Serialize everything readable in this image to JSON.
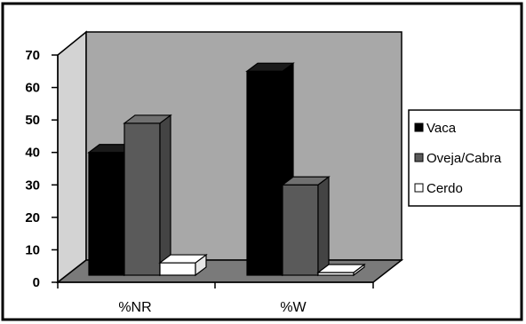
{
  "chart_data": {
    "type": "bar",
    "style": "3d-clustered-column",
    "title": "",
    "xlabel": "",
    "ylabel": "",
    "categories": [
      "%NR",
      "%W"
    ],
    "series": [
      {
        "name": "Vaca",
        "values": [
          40,
          65
        ]
      },
      {
        "name": "Oveja/Cabra",
        "values": [
          49,
          30
        ]
      },
      {
        "name": "Cerdo",
        "values": [
          6,
          3
        ]
      }
    ],
    "ylim": [
      0,
      70
    ],
    "yticks": [
      "0",
      "10",
      "20",
      "30",
      "40",
      "50",
      "60",
      "70"
    ],
    "grid": false,
    "legend_position": "right",
    "colors": {
      "series": [
        "#000000",
        "#5a5a5a",
        "#ffffff"
      ],
      "back_wall": "#a8a8a8",
      "side_wall": "#d3d3d3",
      "floor": "#7a7a7a",
      "frame": "#000000"
    }
  }
}
